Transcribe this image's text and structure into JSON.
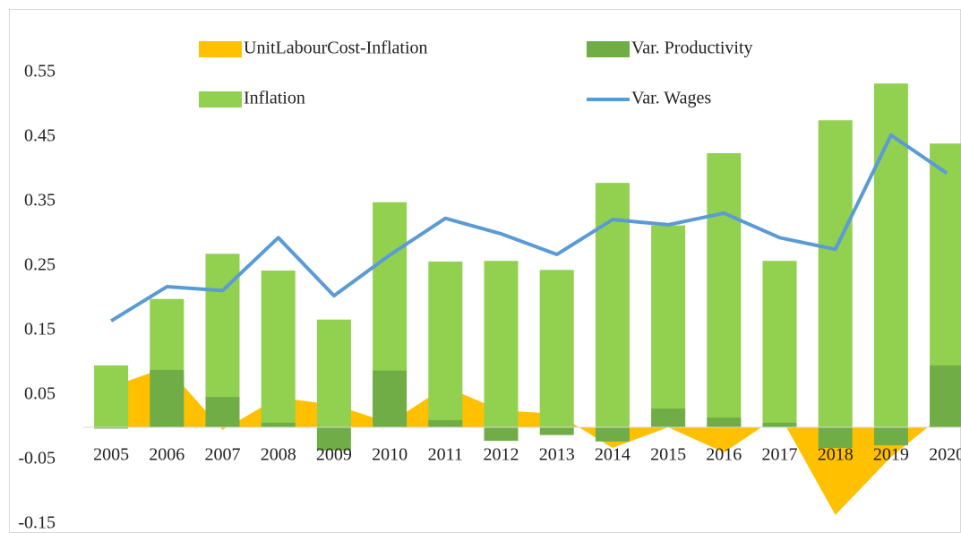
{
  "chart_data": {
    "type": "bar",
    "categories": [
      "2005",
      "2006",
      "2007",
      "2008",
      "2009",
      "2010",
      "2011",
      "2012",
      "2013",
      "2014",
      "2015",
      "2016",
      "2017",
      "2018",
      "2019",
      "2020"
    ],
    "series": [
      {
        "name": "UnitLabourCost-Inflation",
        "type": "area",
        "color": "#ffc000",
        "values": [
          0.063,
          0.093,
          -0.004,
          0.046,
          0.035,
          0.007,
          0.063,
          0.026,
          0.021,
          -0.032,
          0.0,
          -0.039,
          0.019,
          -0.136,
          -0.046,
          0.024
        ]
      },
      {
        "name": "Var. Productivity",
        "type": "bar",
        "color": "#70ad47",
        "values": [
          -0.002,
          0.089,
          0.047,
          0.007,
          -0.036,
          0.088,
          0.011,
          -0.021,
          -0.012,
          -0.022,
          0.029,
          0.015,
          0.007,
          -0.032,
          -0.028,
          0.096
        ]
      },
      {
        "name": "Inflation",
        "type": "bar",
        "color": "#92d050",
        "values": [
          0.096,
          0.199,
          0.269,
          0.243,
          0.167,
          0.349,
          0.257,
          0.258,
          0.244,
          0.379,
          0.313,
          0.425,
          0.258,
          0.476,
          0.533,
          0.44
        ]
      },
      {
        "name": "Var. Wages",
        "type": "line",
        "color": "#5b9bd5",
        "values": [
          0.165,
          0.218,
          0.212,
          0.294,
          0.204,
          0.267,
          0.324,
          0.3,
          0.268,
          0.322,
          0.314,
          0.332,
          0.294,
          0.276,
          0.453,
          0.394
        ]
      }
    ],
    "ylim": [
      -0.15,
      0.55
    ],
    "yticks": [
      -0.15,
      -0.05,
      0.05,
      0.15,
      0.25,
      0.35,
      0.45,
      0.55
    ],
    "grid": false
  }
}
